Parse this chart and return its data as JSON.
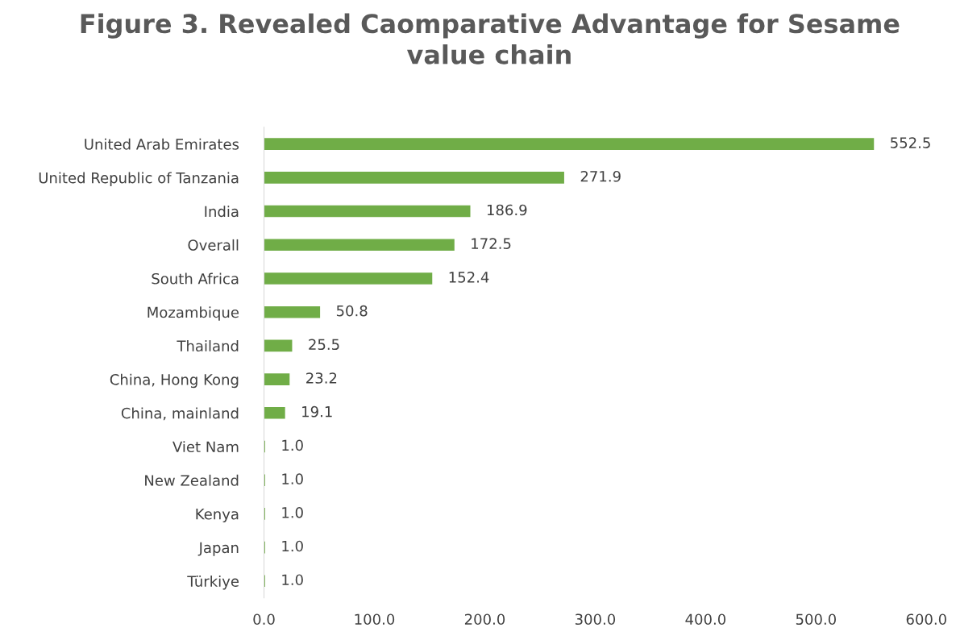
{
  "chart_data": {
    "type": "bar",
    "orientation": "horizontal",
    "title": "Figure 3. Revealed Caomparative Advantage for Sesame\nvalue chain",
    "categories": [
      "United Arab Emirates",
      "United Republic of Tanzania",
      "India",
      "Overall",
      "South Africa",
      "Mozambique",
      "Thailand",
      "China, Hong Kong",
      "China, mainland",
      "Viet Nam",
      "New Zealand",
      "Kenya",
      "Japan",
      "Türkiye"
    ],
    "values": [
      552.5,
      271.9,
      186.9,
      172.5,
      152.4,
      50.8,
      25.5,
      23.2,
      19.1,
      1.0,
      1.0,
      1.0,
      1.0,
      1.0
    ],
    "value_labels": [
      "552.5",
      "271.9",
      "186.9",
      "172.5",
      "152.4",
      "50.8",
      "25.5",
      "23.2",
      "19.1",
      "1.0",
      "1.0",
      "1.0",
      "1.0",
      "1.0"
    ],
    "color": "#70ad47",
    "xlim": [
      0,
      600
    ],
    "xticks": [
      {
        "value": 0,
        "label": "0.0"
      },
      {
        "value": 100,
        "label": "100.0"
      },
      {
        "value": 200,
        "label": "200.0"
      },
      {
        "value": 300,
        "label": "300.0"
      },
      {
        "value": 400,
        "label": "400.0"
      },
      {
        "value": 500,
        "label": "500.0"
      },
      {
        "value": 600,
        "label": "600.0"
      }
    ],
    "grid": false,
    "legend": false
  }
}
